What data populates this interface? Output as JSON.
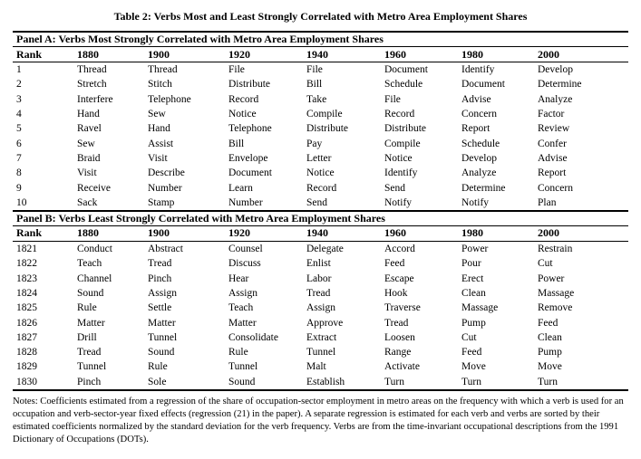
{
  "title": "Table 2: Verbs Most and Least Strongly Correlated with Metro Area Employment Shares",
  "columns": [
    "Rank",
    "1880",
    "1900",
    "1920",
    "1940",
    "1960",
    "1980",
    "2000"
  ],
  "panel_a": {
    "title": "Panel A: Verbs Most Strongly Correlated with Metro Area Employment Shares",
    "rows": [
      [
        "1",
        "Thread",
        "Thread",
        "File",
        "File",
        "Document",
        "Identify",
        "Develop"
      ],
      [
        "2",
        "Stretch",
        "Stitch",
        "Distribute",
        "Bill",
        "Schedule",
        "Document",
        "Determine"
      ],
      [
        "3",
        "Interfere",
        "Telephone",
        "Record",
        "Take",
        "File",
        "Advise",
        "Analyze"
      ],
      [
        "4",
        "Hand",
        "Sew",
        "Notice",
        "Compile",
        "Record",
        "Concern",
        "Factor"
      ],
      [
        "5",
        "Ravel",
        "Hand",
        "Telephone",
        "Distribute",
        "Distribute",
        "Report",
        "Review"
      ],
      [
        "6",
        "Sew",
        "Assist",
        "Bill",
        "Pay",
        "Compile",
        "Schedule",
        "Confer"
      ],
      [
        "7",
        "Braid",
        "Visit",
        "Envelope",
        "Letter",
        "Notice",
        "Develop",
        "Advise"
      ],
      [
        "8",
        "Visit",
        "Describe",
        "Document",
        "Notice",
        "Identify",
        "Analyze",
        "Report"
      ],
      [
        "9",
        "Receive",
        "Number",
        "Learn",
        "Record",
        "Send",
        "Determine",
        "Concern"
      ],
      [
        "10",
        "Sack",
        "Stamp",
        "Number",
        "Send",
        "Notify",
        "Notify",
        "Plan"
      ]
    ]
  },
  "panel_b": {
    "title": "Panel B: Verbs Least Strongly Correlated with Metro Area Employment Shares",
    "rows": [
      [
        "1821",
        "Conduct",
        "Abstract",
        "Counsel",
        "Delegate",
        "Accord",
        "Power",
        "Restrain"
      ],
      [
        "1822",
        "Teach",
        "Tread",
        "Discuss",
        "Enlist",
        "Feed",
        "Pour",
        "Cut"
      ],
      [
        "1823",
        "Channel",
        "Pinch",
        "Hear",
        "Labor",
        "Escape",
        "Erect",
        "Power"
      ],
      [
        "1824",
        "Sound",
        "Assign",
        "Assign",
        "Tread",
        "Hook",
        "Clean",
        "Massage"
      ],
      [
        "1825",
        "Rule",
        "Settle",
        "Teach",
        "Assign",
        "Traverse",
        "Massage",
        "Remove"
      ],
      [
        "1826",
        "Matter",
        "Matter",
        "Matter",
        "Approve",
        "Tread",
        "Pump",
        "Feed"
      ],
      [
        "1827",
        "Drill",
        "Tunnel",
        "Consolidate",
        "Extract",
        "Loosen",
        "Cut",
        "Clean"
      ],
      [
        "1828",
        "Tread",
        "Sound",
        "Rule",
        "Tunnel",
        "Range",
        "Feed",
        "Pump"
      ],
      [
        "1829",
        "Tunnel",
        "Rule",
        "Tunnel",
        "Malt",
        "Activate",
        "Move",
        "Move"
      ],
      [
        "1830",
        "Pinch",
        "Sole",
        "Sound",
        "Establish",
        "Turn",
        "Turn",
        "Turn"
      ]
    ]
  },
  "notes": "Notes: Coefficients estimated from a regression of the share of occupation-sector employment in metro areas on the frequency with which a verb is used for an occupation and verb-sector-year fixed effects (regression (21) in the paper). A separate regression is estimated for each verb and verbs are sorted by their estimated coefficients normalized by the standard deviation for the verb frequency. Verbs are from the time-invariant occupational descriptions from the 1991 Dictionary of Occupations (DOTs)."
}
